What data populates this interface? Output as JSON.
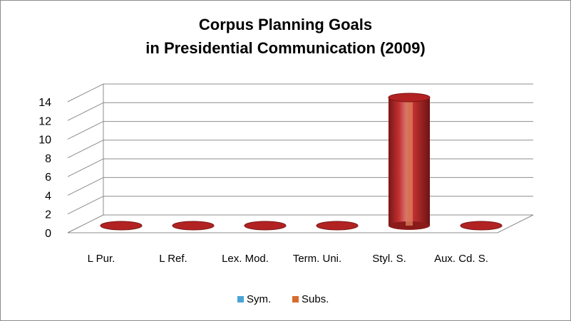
{
  "chart_data": {
    "type": "bar",
    "style": "3d-cylinder",
    "title_lines": [
      "Corpus Planning Goals",
      "in Presidential Communication (2009)"
    ],
    "categories": [
      "L Pur.",
      "L Ref.",
      "Lex. Mod.",
      "Term. Uni.",
      "Styl. S.",
      "Aux. Cd. S."
    ],
    "series": [
      {
        "name": "Sym.",
        "values": [
          0,
          0,
          0,
          0,
          0,
          0
        ],
        "color": "#4aa3d6"
      },
      {
        "name": "Subs.",
        "values": [
          0,
          0,
          0,
          0,
          14,
          0
        ],
        "color": "#d86b2e"
      }
    ],
    "ylim": [
      0,
      14
    ],
    "yticks": [
      0,
      2,
      4,
      6,
      8,
      10,
      12,
      14
    ],
    "grid": true,
    "legend_position": "bottom",
    "cylinder_color": "#b22222"
  }
}
